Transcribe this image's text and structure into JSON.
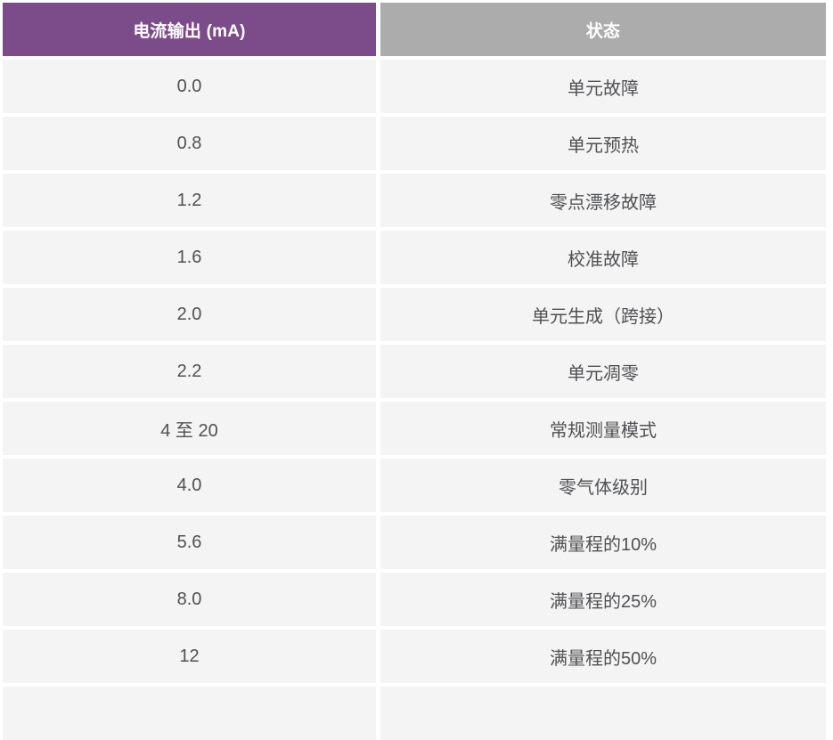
{
  "table": {
    "columns": [
      {
        "label": "电流输出 (mA)"
      },
      {
        "label": "状态"
      }
    ],
    "rows": [
      {
        "current": "0.0",
        "status": "单元故障"
      },
      {
        "current": "0.8",
        "status": "单元预热"
      },
      {
        "current": "1.2",
        "status": "零点漂移故障"
      },
      {
        "current": "1.6",
        "status": "校准故障"
      },
      {
        "current": "2.0",
        "status": "单元生成（跨接）"
      },
      {
        "current": "2.2",
        "status": "单元凋零"
      },
      {
        "current": "4 至 20",
        "status": "常规测量模式"
      },
      {
        "current": "4.0",
        "status": "零气体级别"
      },
      {
        "current": "5.6",
        "status": "满量程的10%"
      },
      {
        "current": "8.0",
        "status": "满量程的25%"
      },
      {
        "current": "12",
        "status": "满量程的50%"
      }
    ],
    "colors": {
      "header_current": "#7C4C8A",
      "header_status": "#ACACAC",
      "header_text": "#FFFFFF",
      "row_bg": "#F4F4F4",
      "cell_text": "#4F5053"
    }
  }
}
